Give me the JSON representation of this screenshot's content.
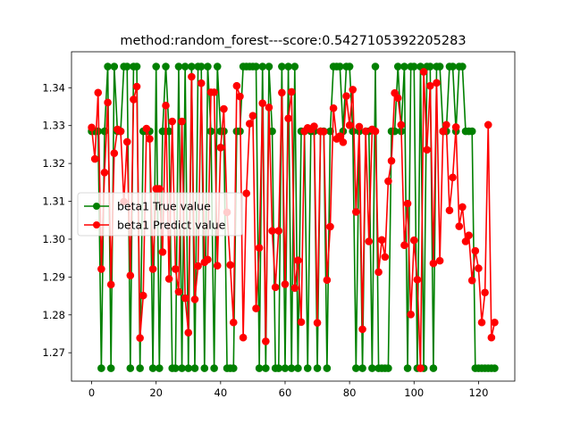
{
  "chart_data": {
    "type": "line",
    "title": "method:random_forest---score:0.5427105392205283",
    "xlabel": "",
    "ylabel": "",
    "xlim": [
      -6.25,
      131.25
    ],
    "ylim": [
      1.2625,
      1.3495
    ],
    "x_ticks": [
      0,
      20,
      40,
      60,
      80,
      100,
      120
    ],
    "x_tick_labels": [
      "0",
      "20",
      "40",
      "60",
      "80",
      "100",
      "120"
    ],
    "y_ticks": [
      1.27,
      1.28,
      1.29,
      1.3,
      1.31,
      1.32,
      1.33,
      1.34
    ],
    "y_tick_labels": [
      "1.27",
      "1.28",
      "1.29",
      "1.30",
      "1.31",
      "1.32",
      "1.33",
      "1.34"
    ],
    "grid": false,
    "legend": {
      "placement": "center-left"
    },
    "series": [
      {
        "name": "beta1 True value",
        "color": "#008000",
        "marker": "circle",
        "values": [
          1.3285,
          1.3285,
          1.3285,
          1.2659,
          1.3285,
          1.3456,
          1.2659,
          1.3456,
          1.3285,
          1.3285,
          1.3456,
          1.3456,
          1.2659,
          1.3456,
          1.3456,
          1.2659,
          1.3285,
          1.3285,
          1.3285,
          1.2659,
          1.3456,
          1.2659,
          1.3285,
          1.3456,
          1.3285,
          1.2659,
          1.2659,
          1.3456,
          1.2659,
          1.3456,
          1.2659,
          1.3456,
          1.2659,
          1.3456,
          1.3456,
          1.2659,
          1.3456,
          1.3285,
          1.2659,
          1.3456,
          1.3285,
          1.3285,
          1.2659,
          1.2659,
          1.2659,
          1.3285,
          1.3285,
          1.3456,
          1.3456,
          1.3456,
          1.3456,
          1.3456,
          1.2659,
          1.3456,
          1.2659,
          1.3456,
          1.3285,
          1.2659,
          1.2659,
          1.3456,
          1.2659,
          1.3456,
          1.2659,
          1.3456,
          1.2659,
          1.3285,
          1.3285,
          1.2659,
          1.3285,
          1.3285,
          1.2659,
          1.3285,
          1.3285,
          1.2659,
          1.3285,
          1.3456,
          1.3456,
          1.3456,
          1.3285,
          1.3456,
          1.3456,
          1.3285,
          1.2659,
          1.3285,
          1.2659,
          1.3285,
          1.3285,
          1.2659,
          1.3456,
          1.2659,
          1.2659,
          1.2659,
          1.2659,
          1.3285,
          1.3285,
          1.3456,
          1.3285,
          1.3456,
          1.2659,
          1.3456,
          1.3456,
          1.2659,
          1.3456,
          1.2659,
          1.3456,
          1.3456,
          1.2659,
          1.3456,
          1.3456,
          1.3285,
          1.3285,
          1.3456,
          1.3456,
          1.3285,
          1.3456,
          1.3456,
          1.3285,
          1.3285,
          1.3285,
          1.2659,
          1.2659,
          1.2659,
          1.2659,
          1.2659,
          1.2659,
          1.2659
        ]
      },
      {
        "name": "beta1 Predict value",
        "color": "#ff0000",
        "marker": "circle",
        "values": [
          1.3295,
          1.3212,
          1.3387,
          1.2921,
          1.3176,
          1.3361,
          1.288,
          1.3227,
          1.329,
          1.3285,
          1.3099,
          1.3257,
          1.2904,
          1.3369,
          1.3403,
          1.2739,
          1.2851,
          1.3292,
          1.3265,
          1.2921,
          1.3133,
          1.3133,
          1.2966,
          1.3353,
          1.2895,
          1.3311,
          1.2921,
          1.2861,
          1.3311,
          1.2844,
          1.2753,
          1.3429,
          1.2841,
          1.2929,
          1.3412,
          1.2939,
          1.2946,
          1.3388,
          1.3388,
          1.293,
          1.3242,
          1.3344,
          1.3071,
          1.2932,
          1.278,
          1.3405,
          1.3377,
          1.274,
          1.3121,
          1.3305,
          1.3326,
          1.2817,
          1.2977,
          1.3359,
          1.273,
          1.3348,
          1.3022,
          1.2873,
          1.3022,
          1.3387,
          1.2881,
          1.3319,
          1.3389,
          1.2871,
          1.2944,
          1.2781,
          1.3285,
          1.3294,
          1.329,
          1.3298,
          1.2779,
          1.3285,
          1.3284,
          1.2892,
          1.3033,
          1.3346,
          1.3265,
          1.3272,
          1.3256,
          1.3378,
          1.3301,
          1.3395,
          1.3072,
          1.3297,
          1.2762,
          1.3285,
          1.2994,
          1.329,
          1.3285,
          1.2913,
          1.2998,
          1.2953,
          1.3153,
          1.3207,
          1.3386,
          1.3373,
          1.3302,
          1.2984,
          1.3094,
          1.2801,
          1.2997,
          1.2893,
          1.2659,
          1.3442,
          1.3236,
          1.3405,
          1.2936,
          1.3413,
          1.2943,
          1.3285,
          1.3302,
          1.3076,
          1.3163,
          1.3296,
          1.3034,
          1.3085,
          1.2994,
          1.301,
          1.2891,
          1.2969,
          1.2923,
          1.278,
          1.2859,
          1.3302,
          1.274,
          1.278
        ]
      }
    ]
  }
}
